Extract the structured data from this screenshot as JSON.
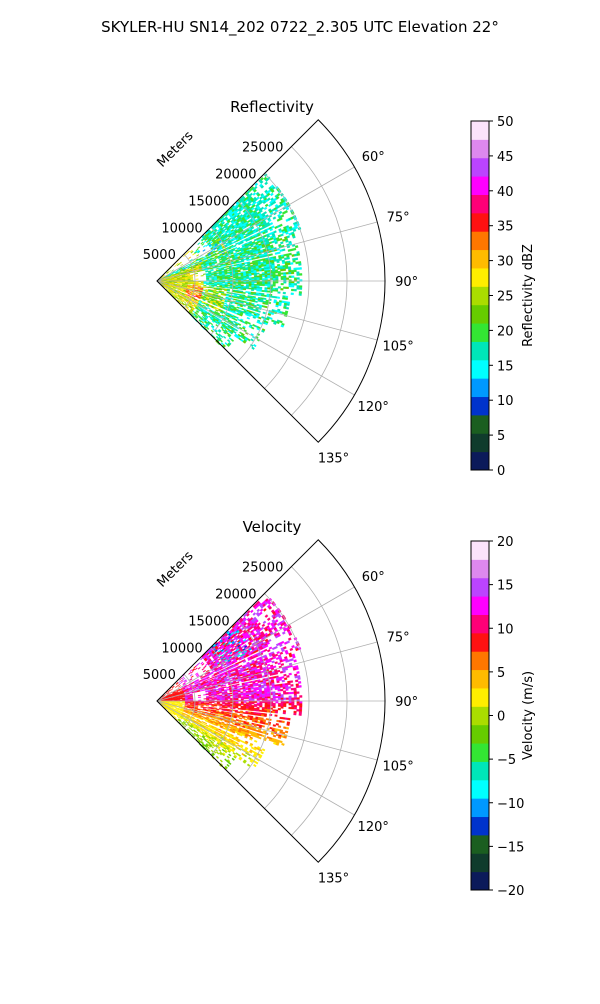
{
  "title": "SKYLER-HU  SN14_202  0722_2.305 UTC Elevation 22°",
  "chart_data": [
    {
      "type": "heatmap",
      "subtype": "polar-sector-radar",
      "title": "Reflectivity",
      "radial_axis_label": "Meters",
      "radial_ticks": [
        "5000",
        "10000",
        "15000",
        "20000",
        "25000"
      ],
      "radial_tick_values": [
        5000,
        10000,
        15000,
        20000,
        25000
      ],
      "rlim": [
        0,
        30000
      ],
      "angle_ticks": [
        "60°",
        "75°",
        "90°",
        "105°",
        "120°",
        "135°"
      ],
      "angle_tick_values": [
        60,
        75,
        90,
        105,
        120,
        135
      ],
      "theta_range": [
        45,
        135
      ],
      "grid": true,
      "colorbar": {
        "label": "Reflectivity dBZ",
        "min": 0,
        "max": 50,
        "ticks": [
          "0",
          "5",
          "10",
          "15",
          "20",
          "25",
          "30",
          "35",
          "40",
          "45",
          "50"
        ],
        "tick_values": [
          0,
          5,
          10,
          15,
          20,
          25,
          30,
          35,
          40,
          45,
          50
        ]
      },
      "colormap": [
        "#0b1a5a",
        "#103b2c",
        "#1b5e20",
        "#0033cc",
        "#0099ff",
        "#00ffff",
        "#00e6b8",
        "#33e633",
        "#66cc00",
        "#aadd00",
        "#ffee00",
        "#ffbb00",
        "#ff7700",
        "#ff1111",
        "#ff0077",
        "#ff00ff",
        "#bb44ff",
        "#dd88ee",
        "#fbe3fb"
      ]
    },
    {
      "type": "heatmap",
      "subtype": "polar-sector-radar",
      "title": "Velocity",
      "radial_axis_label": "Meters",
      "radial_ticks": [
        "5000",
        "10000",
        "15000",
        "20000",
        "25000"
      ],
      "radial_tick_values": [
        5000,
        10000,
        15000,
        20000,
        25000
      ],
      "rlim": [
        0,
        30000
      ],
      "angle_ticks": [
        "60°",
        "75°",
        "90°",
        "105°",
        "120°",
        "135°"
      ],
      "angle_tick_values": [
        60,
        75,
        90,
        105,
        120,
        135
      ],
      "theta_range": [
        45,
        135
      ],
      "grid": true,
      "colorbar": {
        "label": "Velocity (m/s)",
        "min": -20,
        "max": 20,
        "ticks": [
          "−20",
          "−15",
          "−10",
          "−5",
          "0",
          "5",
          "10",
          "15",
          "20"
        ],
        "tick_values": [
          -20,
          -15,
          -10,
          -5,
          0,
          5,
          10,
          15,
          20
        ]
      },
      "colormap": [
        "#0b1a5a",
        "#103b2c",
        "#1b5e20",
        "#0033cc",
        "#0099ff",
        "#00ffff",
        "#00e6b8",
        "#33e633",
        "#66cc00",
        "#aadd00",
        "#ffee00",
        "#ffbb00",
        "#ff7700",
        "#ff1111",
        "#ff0077",
        "#ff00ff",
        "#bb44ff",
        "#dd88ee",
        "#fbe3fb"
      ]
    }
  ]
}
